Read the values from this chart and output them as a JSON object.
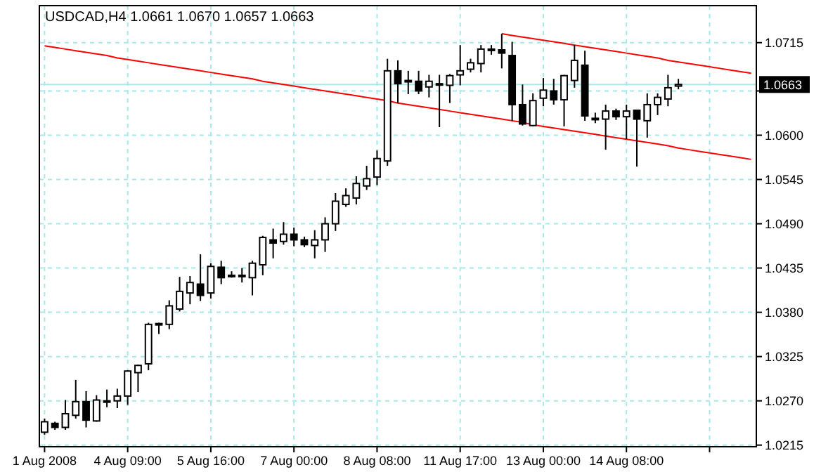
{
  "chart_data": {
    "type": "candlestick",
    "title": "USDCAD,H4  1.0661 1.0670 1.0657 1.0663",
    "categories": [
      "1 Aug 2008",
      null,
      null,
      null,
      null,
      null,
      null,
      null,
      "4 Aug 09:00",
      null,
      null,
      null,
      null,
      null,
      null,
      null,
      "5 Aug 16:00",
      null,
      null,
      null,
      null,
      null,
      null,
      null,
      "7 Aug 00:00",
      null,
      null,
      null,
      null,
      null,
      null,
      null,
      "8 Aug 08:00",
      null,
      null,
      null,
      null,
      null,
      null,
      null,
      "11 Aug 17:00",
      null,
      null,
      null,
      null,
      null,
      null,
      null,
      "13 Aug 00:00",
      null,
      null,
      null,
      null,
      null,
      null,
      null,
      "14 Aug 08:00",
      null,
      null,
      null,
      null,
      null,
      null,
      null,
      null,
      null,
      null,
      null,
      null
    ],
    "ohlc": [
      [
        1.0231,
        1.0248,
        1.0228,
        1.0244
      ],
      [
        1.0242,
        1.0244,
        1.0234,
        1.0237
      ],
      [
        1.0237,
        1.0271,
        1.0234,
        1.0254
      ],
      [
        1.0252,
        1.0296,
        1.0248,
        1.0269
      ],
      [
        1.0269,
        1.0282,
        1.0237,
        1.0246
      ],
      [
        1.0245,
        1.0277,
        1.0244,
        1.0271
      ],
      [
        1.0269,
        1.0284,
        1.0262,
        1.027
      ],
      [
        1.027,
        1.0285,
        1.0261,
        1.0276
      ],
      [
        1.0276,
        1.0308,
        1.0265,
        1.0307
      ],
      [
        1.0305,
        1.0315,
        1.0281,
        1.0314
      ],
      [
        1.0316,
        1.0367,
        1.0308,
        1.0365
      ],
      [
        1.0365,
        1.0367,
        1.0353,
        1.0366
      ],
      [
        1.0365,
        1.0395,
        1.0359,
        1.0388
      ],
      [
        1.0384,
        1.0424,
        1.0381,
        1.0406
      ],
      [
        1.0404,
        1.0425,
        1.039,
        1.0417
      ],
      [
        1.0415,
        1.0452,
        1.0394,
        1.0401
      ],
      [
        1.0404,
        1.0441,
        1.0397,
        1.0437
      ],
      [
        1.0436,
        1.0444,
        1.0415,
        1.0423
      ],
      [
        1.0425,
        1.0431,
        1.0423,
        1.0426
      ],
      [
        1.0425,
        1.0435,
        1.0417,
        1.0426
      ],
      [
        1.0423,
        1.0444,
        1.0401,
        1.0441
      ],
      [
        1.0439,
        1.0475,
        1.0426,
        1.0473
      ],
      [
        1.047,
        1.0484,
        1.0447,
        1.0466
      ],
      [
        1.0468,
        1.0492,
        1.0464,
        1.0477
      ],
      [
        1.0477,
        1.0485,
        1.0462,
        1.047
      ],
      [
        1.047,
        1.0474,
        1.0461,
        1.0464
      ],
      [
        1.0463,
        1.0482,
        1.0447,
        1.047
      ],
      [
        1.047,
        1.0498,
        1.0455,
        1.049
      ],
      [
        1.049,
        1.0528,
        1.0481,
        1.0518
      ],
      [
        1.0514,
        1.0534,
        1.0511,
        1.0525
      ],
      [
        1.0522,
        1.0549,
        1.0514,
        1.054
      ],
      [
        1.0537,
        1.0562,
        1.0532,
        1.0546
      ],
      [
        1.0548,
        1.0581,
        1.0538,
        1.0571
      ],
      [
        1.0568,
        1.0695,
        1.0562,
        1.068
      ],
      [
        1.068,
        1.0693,
        1.064,
        1.0664
      ],
      [
        1.0667,
        1.068,
        1.0651,
        1.0668
      ],
      [
        1.0667,
        1.068,
        1.0651,
        1.0655
      ],
      [
        1.066,
        1.0675,
        1.0647,
        1.0667
      ],
      [
        1.0663,
        1.0675,
        1.061,
        1.0664
      ],
      [
        1.0662,
        1.0676,
        1.064,
        1.0674
      ],
      [
        1.0675,
        1.0712,
        1.0662,
        1.068
      ],
      [
        1.0682,
        1.0695,
        1.0678,
        1.069
      ],
      [
        1.0689,
        1.0712,
        1.0678,
        1.0707
      ],
      [
        1.0706,
        1.0712,
        1.07,
        1.0707
      ],
      [
        1.0706,
        1.0726,
        1.0683,
        1.0702
      ],
      [
        1.0699,
        1.0716,
        1.0618,
        1.0638
      ],
      [
        1.0638,
        1.0663,
        1.0612,
        1.0614
      ],
      [
        1.0612,
        1.0652,
        1.0611,
        1.0643
      ],
      [
        1.0646,
        1.0671,
        1.0636,
        1.0656
      ],
      [
        1.0655,
        1.067,
        1.0638,
        1.0644
      ],
      [
        1.0644,
        1.0675,
        1.0611,
        1.0674
      ],
      [
        1.0668,
        1.0712,
        1.0659,
        1.0693
      ],
      [
        1.0687,
        1.0705,
        1.0618,
        1.0624
      ],
      [
        1.0621,
        1.0628,
        1.0615,
        1.062
      ],
      [
        1.062,
        1.0638,
        1.0582,
        1.063
      ],
      [
        1.063,
        1.0633,
        1.0619,
        1.0623
      ],
      [
        1.0623,
        1.0638,
        1.0595,
        1.063
      ],
      [
        1.0631,
        1.0631,
        1.0561,
        1.062
      ],
      [
        1.0618,
        1.0652,
        1.0597,
        1.0638
      ],
      [
        1.0638,
        1.0652,
        1.0625,
        1.0647
      ],
      [
        1.0645,
        1.0675,
        1.0636,
        1.0659
      ],
      [
        1.0661,
        1.067,
        1.0657,
        1.0663
      ],
      null,
      null,
      null,
      null,
      null,
      null,
      null
    ],
    "series": [
      {
        "type": "line",
        "color": "#ff0000",
        "values": [
          1.0711,
          1.0709,
          1.0707,
          1.0705,
          1.0703,
          1.0701,
          1.0699,
          1.0696,
          1.0694,
          1.0692,
          1.069,
          1.0688,
          1.0686,
          1.0684,
          1.0682,
          1.068,
          1.0678,
          1.0676,
          1.0674,
          1.0672,
          1.067,
          1.0667,
          1.0665,
          1.0663,
          1.0661,
          1.0659,
          1.0657,
          1.0655,
          1.0653,
          1.0651,
          1.0649,
          1.0647,
          1.0645,
          1.0643,
          1.064,
          1.0638,
          1.0636,
          1.0634,
          1.0632,
          1.063,
          1.0628,
          1.0626,
          1.0624,
          1.0622,
          1.062,
          1.0618,
          1.0616,
          1.0613,
          1.0611,
          1.0609,
          1.0607,
          1.0605,
          1.0603,
          1.0601,
          1.0599,
          1.0597,
          1.0595,
          1.0593,
          1.0591,
          1.0589,
          1.0587,
          1.0584,
          1.0582,
          1.058,
          1.0578,
          1.0576,
          1.0574,
          1.0572,
          1.057
        ]
      },
      {
        "type": "line",
        "color": "#ff0000",
        "values": [
          null,
          null,
          null,
          null,
          null,
          null,
          null,
          null,
          null,
          null,
          null,
          null,
          null,
          null,
          null,
          null,
          null,
          null,
          null,
          null,
          null,
          null,
          null,
          null,
          null,
          null,
          null,
          null,
          null,
          null,
          null,
          null,
          null,
          null,
          null,
          null,
          null,
          null,
          null,
          null,
          null,
          null,
          null,
          null,
          1.0726,
          1.0724,
          1.0722,
          1.072,
          1.0718,
          1.0716,
          1.0714,
          1.0712,
          1.071,
          1.0708,
          1.0706,
          1.0704,
          1.0702,
          1.07,
          1.0698,
          1.0696,
          1.0693,
          1.0691,
          1.0689,
          1.0687,
          1.0685,
          1.0683,
          1.0681,
          1.0679,
          1.0677
        ]
      }
    ],
    "ylim": [
      1.0213,
      1.0761
    ],
    "yticks": [
      {
        "value": 1.0215,
        "label": "1.0215"
      },
      {
        "value": 1.027,
        "label": "1.0270"
      },
      {
        "value": 1.0325,
        "label": "1.0325"
      },
      {
        "value": 1.038,
        "label": "1.0380"
      },
      {
        "value": 1.0435,
        "label": "1.0435"
      },
      {
        "value": 1.049,
        "label": "1.0490"
      },
      {
        "value": 1.0545,
        "label": "1.0545"
      },
      {
        "value": 1.06,
        "label": "1.0600"
      },
      {
        "value": 1.0655,
        "label": null
      },
      {
        "value": 1.0715,
        "label": "1.0715"
      }
    ],
    "grid": true,
    "ref_lines": [
      {
        "axis": "y",
        "value": 1.0663,
        "label": "1.0663",
        "color": "#a8e8e8"
      }
    ]
  }
}
